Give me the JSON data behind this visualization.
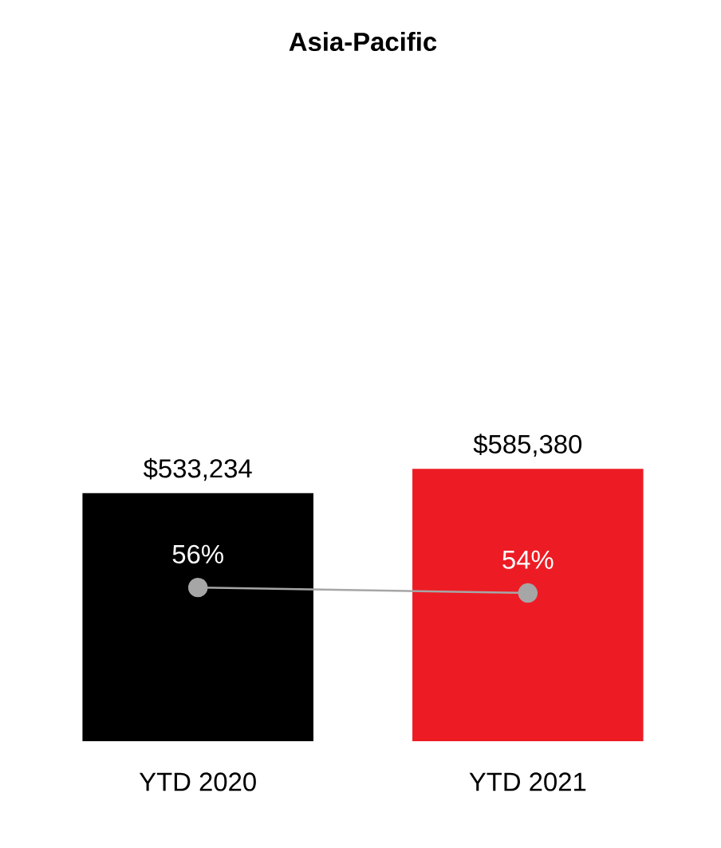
{
  "chart_data": {
    "type": "bar",
    "title": "Asia-Pacific",
    "categories": [
      "YTD 2020",
      "YTD 2021"
    ],
    "series": [
      {
        "colors": [
          "#000000",
          "#ed1c24"
        ],
        "values": [
          533234,
          585380
        ],
        "value_labels": [
          "$533,234",
          "$585,380"
        ]
      },
      {
        "type": "line",
        "axis": "y2",
        "color": "#a6a6a6",
        "marker": "circle",
        "values": [
          56,
          54
        ],
        "value_labels": [
          "56%",
          "54%"
        ]
      }
    ],
    "tick_labels": "x"
  }
}
